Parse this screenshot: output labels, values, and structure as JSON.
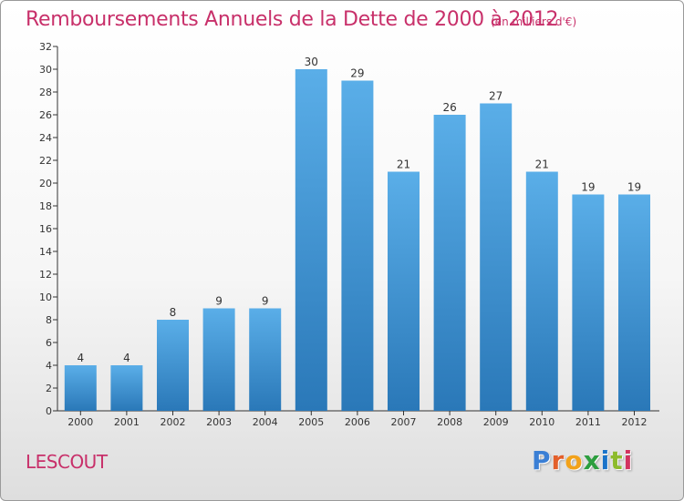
{
  "header": {
    "title": "Remboursements Annuels de la Dette de 2000 à 2012",
    "subtitle": "(en milliers d'€)"
  },
  "footer": {
    "commune": "LESCOUT",
    "logo_letters": [
      "P",
      "r",
      "o",
      "x",
      "i",
      "t",
      "i"
    ]
  },
  "colors": {
    "title": "#c8306a",
    "bar_top": "#5aaee8",
    "bar_bottom": "#2a78b8",
    "axis": "#333333"
  },
  "chart_data": {
    "type": "bar",
    "title": "Remboursements Annuels de la Dette de 2000 à 2012",
    "subtitle": "(en milliers d'€)",
    "categories": [
      "2000",
      "2001",
      "2002",
      "2003",
      "2004",
      "2005",
      "2006",
      "2007",
      "2008",
      "2009",
      "2010",
      "2011",
      "2012"
    ],
    "values": [
      4,
      4,
      8,
      9,
      9,
      30,
      29,
      21,
      26,
      27,
      21,
      19,
      19
    ],
    "ylim": [
      0,
      32
    ],
    "yticks": [
      0,
      2,
      4,
      6,
      8,
      10,
      12,
      14,
      16,
      18,
      20,
      22,
      24,
      26,
      28,
      30,
      32
    ],
    "xlabel": "",
    "ylabel": "",
    "grid": false,
    "data_labels": true
  }
}
